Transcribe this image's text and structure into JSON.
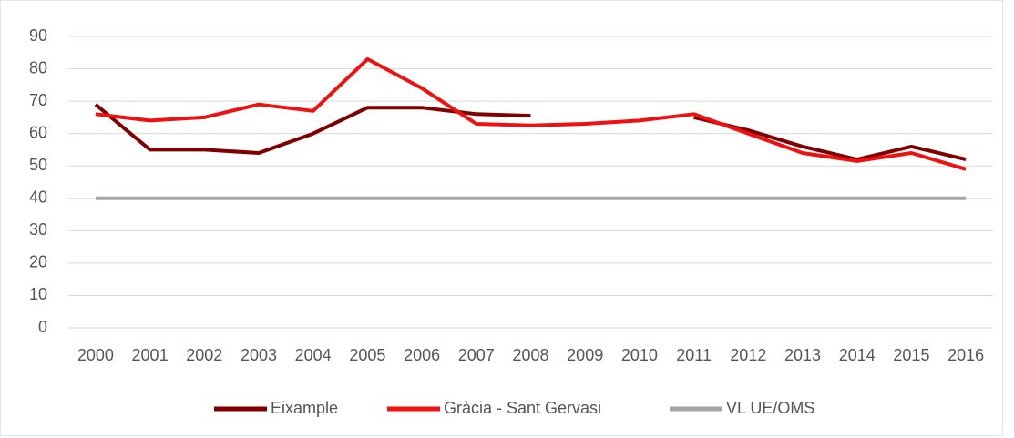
{
  "chart_data": {
    "type": "line",
    "categories": [
      "2000",
      "2001",
      "2002",
      "2003",
      "2004",
      "2005",
      "2006",
      "2007",
      "2008",
      "2009",
      "2010",
      "2011",
      "2012",
      "2013",
      "2014",
      "2015",
      "2016"
    ],
    "series": [
      {
        "name": "Eixample",
        "color": "#800000",
        "values": [
          69,
          55,
          55,
          54,
          60,
          68,
          68,
          66,
          65.5,
          null,
          null,
          65,
          61,
          56,
          52,
          56,
          52
        ]
      },
      {
        "name": "Gràcia - Sant Gervasi",
        "color": "#ee1111",
        "values": [
          66,
          64,
          65,
          69,
          67,
          83,
          74,
          63,
          62.5,
          63,
          64,
          66,
          60,
          54,
          51.5,
          54,
          49
        ]
      },
      {
        "name": "VL UE/OMS",
        "color": "#a6a6a6",
        "values": [
          40,
          40,
          40,
          40,
          40,
          40,
          40,
          40,
          40,
          40,
          40,
          40,
          40,
          40,
          40,
          40,
          40
        ]
      }
    ],
    "ylim": [
      0,
      90
    ],
    "yticks": [
      0,
      10,
      20,
      30,
      40,
      50,
      60,
      70,
      80,
      90
    ],
    "grid": true,
    "legend": "bottom"
  }
}
